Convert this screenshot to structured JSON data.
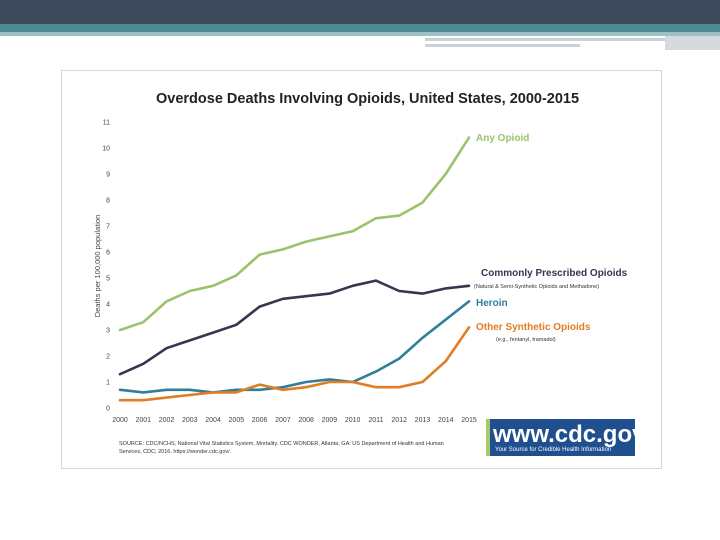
{
  "source": "SOURCE: CDC/NCHS, National Vital Statistics System, Mortality. CDC WONDER, Atlanta, GA: US Department of Health and Human Services, CDC; 2016. https://wonder.cdc.gov/.",
  "cdc_logo": {
    "domain": "www.cdc.gov",
    "tagline": "Your Source for Credible Health Information"
  },
  "colors": {
    "any_opioid": "#9bc36b",
    "prescribed": "#3d3250",
    "heroin": "#2f7e9b",
    "synthetic": "#e07d25",
    "cdc_blue": "#1f4f8e"
  },
  "chart_data": {
    "type": "line",
    "title": "Overdose Deaths Involving Opioids, United States, 2000-2015",
    "xlabel": "",
    "ylabel": "Deaths per 100,000 population",
    "ylim": [
      0,
      11
    ],
    "yticks": [
      0,
      1,
      2,
      3,
      4,
      5,
      6,
      7,
      8,
      9,
      10,
      11
    ],
    "x": [
      "2000",
      "2001",
      "2002",
      "2003",
      "2004",
      "2005",
      "2006",
      "2007",
      "2008",
      "2009",
      "2010",
      "2011",
      "2012",
      "2013",
      "2014",
      "2015"
    ],
    "series": [
      {
        "name": "Any Opioid",
        "sublabel": "",
        "color": "#9bc36b",
        "values": [
          3.0,
          3.3,
          4.1,
          4.5,
          4.7,
          5.1,
          5.9,
          6.1,
          6.4,
          6.6,
          6.8,
          7.3,
          7.4,
          7.9,
          9.0,
          10.4
        ]
      },
      {
        "name": "Commonly Prescribed Opioids",
        "sublabel": "(Natural & Semi-Synthetic Opioids and Methadone)",
        "color": "#3d3250",
        "values": [
          1.3,
          1.7,
          2.3,
          2.6,
          2.9,
          3.2,
          3.9,
          4.2,
          4.3,
          4.4,
          4.7,
          4.9,
          4.5,
          4.4,
          4.6,
          4.7
        ]
      },
      {
        "name": "Heroin",
        "sublabel": "",
        "color": "#2f7e9b",
        "values": [
          0.7,
          0.6,
          0.7,
          0.7,
          0.6,
          0.7,
          0.7,
          0.8,
          1.0,
          1.1,
          1.0,
          1.4,
          1.9,
          2.7,
          3.4,
          4.1
        ]
      },
      {
        "name": "Other Synthetic Opioids",
        "sublabel": "(e.g., fentanyl, tramadol)",
        "color": "#e07d25",
        "values": [
          0.3,
          0.3,
          0.4,
          0.5,
          0.6,
          0.6,
          0.9,
          0.7,
          0.8,
          1.0,
          1.0,
          0.8,
          0.8,
          1.0,
          1.8,
          3.1
        ]
      }
    ]
  }
}
